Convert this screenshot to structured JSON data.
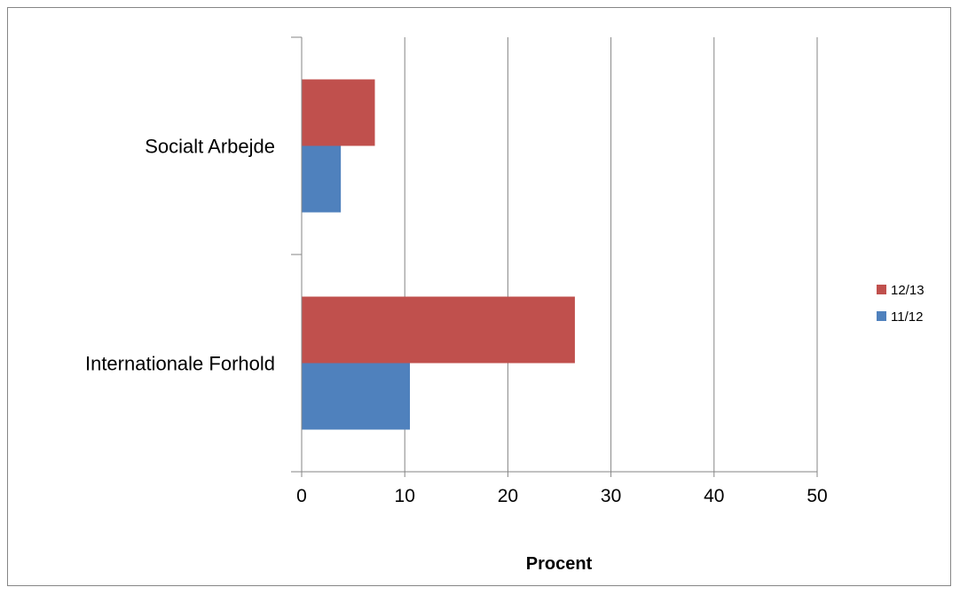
{
  "chart_data": {
    "type": "bar",
    "orientation": "horizontal",
    "categories": [
      "Internationale Forhold",
      "Socialt Arbejde"
    ],
    "series": [
      {
        "name": "11/12",
        "color": "#4f81bd",
        "values": [
          10.5,
          3.8
        ]
      },
      {
        "name": "12/13",
        "color": "#c0504d",
        "values": [
          26.5,
          7.1
        ]
      }
    ],
    "xlabel": "Procent",
    "ylabel": "",
    "title": "",
    "xlim": [
      0,
      50
    ],
    "x_ticks": [
      "0",
      "10",
      "20",
      "30",
      "40",
      "50"
    ],
    "grid": "vertical",
    "legend_position": "right"
  }
}
